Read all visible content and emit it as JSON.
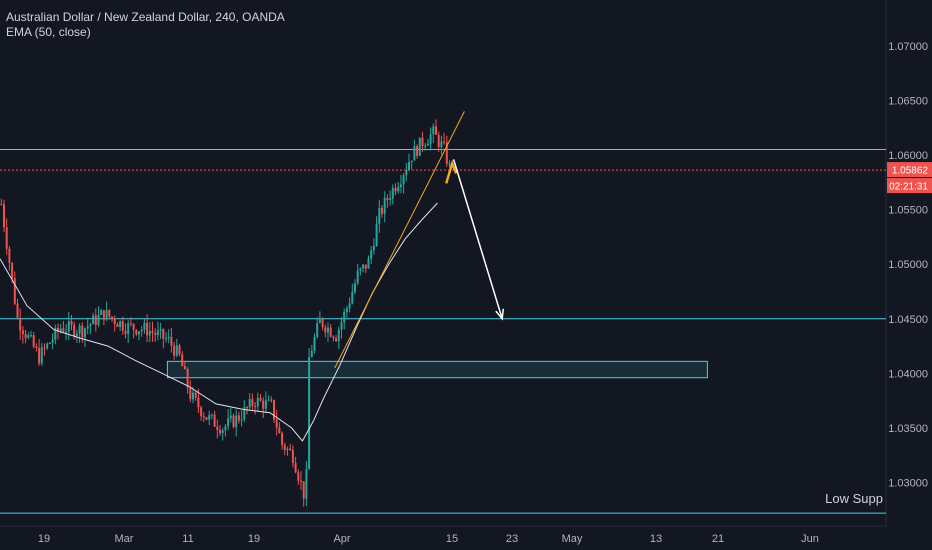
{
  "header": {
    "title": "Australian Dollar / New Zealand Dollar, 240, OANDA",
    "indicator": "EMA (50, close)"
  },
  "price_labels": {
    "current_price": "1.05862",
    "countdown": "02:21:31"
  },
  "annotations": {
    "low_support": "Low Supp"
  },
  "colors": {
    "background": "#131722",
    "up_candle": "#26a69a",
    "down_candle": "#ef5350",
    "level_line": "#4dd0e1",
    "trendline": "#f5a623",
    "ema": "#e0e3eb",
    "price_tag": "#ef5350"
  },
  "chart_data": {
    "type": "candlestick",
    "symbol": "AUDNZD",
    "timeframe": "240",
    "ylim": [
      1.0262,
      1.0742
    ],
    "y_ticks": [
      "1.07000",
      "1.06500",
      "1.06000",
      "1.05500",
      "1.05000",
      "1.04500",
      "1.04000",
      "1.03500",
      "1.03000"
    ],
    "x_ticks": [
      "19",
      "Mar",
      "11",
      "19",
      "Apr",
      "15",
      "23",
      "May",
      "13",
      "21",
      "Jun"
    ],
    "price_path": [
      [
        0,
        1.0555
      ],
      [
        6,
        1.045
      ],
      [
        14,
        1.0415
      ],
      [
        22,
        1.0442
      ],
      [
        30,
        1.044
      ],
      [
        38,
        1.0455
      ],
      [
        46,
        1.0443
      ],
      [
        54,
        1.044
      ],
      [
        62,
        1.043
      ],
      [
        66,
        1.0415
      ],
      [
        70,
        1.038
      ],
      [
        76,
        1.036
      ],
      [
        82,
        1.035
      ],
      [
        88,
        1.036
      ],
      [
        94,
        1.0375
      ],
      [
        100,
        1.037
      ],
      [
        104,
        1.0335
      ],
      [
        108,
        1.0325
      ],
      [
        112,
        1.029
      ],
      [
        113,
        1.0312
      ],
      [
        114,
        1.0415
      ],
      [
        118,
        1.0448
      ],
      [
        124,
        1.0435
      ],
      [
        128,
        1.046
      ],
      [
        132,
        1.049
      ],
      [
        136,
        1.0502
      ],
      [
        140,
        1.0545
      ],
      [
        144,
        1.0565
      ],
      [
        148,
        1.058
      ],
      [
        152,
        1.06
      ],
      [
        156,
        1.0612
      ],
      [
        160,
        1.062
      ],
      [
        164,
        1.0605
      ],
      [
        166,
        1.0588
      ]
    ],
    "ema_50": [
      [
        0,
        1.0505
      ],
      [
        10,
        1.0462
      ],
      [
        20,
        1.044
      ],
      [
        30,
        1.0432
      ],
      [
        40,
        1.0425
      ],
      [
        50,
        1.0412
      ],
      [
        60,
        1.04
      ],
      [
        70,
        1.0388
      ],
      [
        80,
        1.0372
      ],
      [
        90,
        1.0367
      ],
      [
        100,
        1.0364
      ],
      [
        108,
        1.035
      ],
      [
        112,
        1.0338
      ],
      [
        116,
        1.0356
      ],
      [
        120,
        1.0378
      ],
      [
        126,
        1.0408
      ],
      [
        132,
        1.0442
      ],
      [
        138,
        1.0474
      ],
      [
        144,
        1.05
      ],
      [
        150,
        1.0523
      ],
      [
        156,
        1.054
      ],
      [
        162,
        1.0556
      ]
    ],
    "horizontal_levels": [
      1.0605,
      1.045,
      1.0272
    ],
    "current_price_line": 1.05862,
    "support_zone": {
      "x_start": 62,
      "x_end": 262,
      "top": 1.0411,
      "bottom": 1.0396
    },
    "trendline": {
      "from": [
        124,
        1.0405
      ],
      "to": [
        172,
        1.064
      ]
    },
    "projection_arrow": {
      "from": [
        168,
        1.0596
      ],
      "to": [
        186,
        1.045
      ]
    }
  }
}
